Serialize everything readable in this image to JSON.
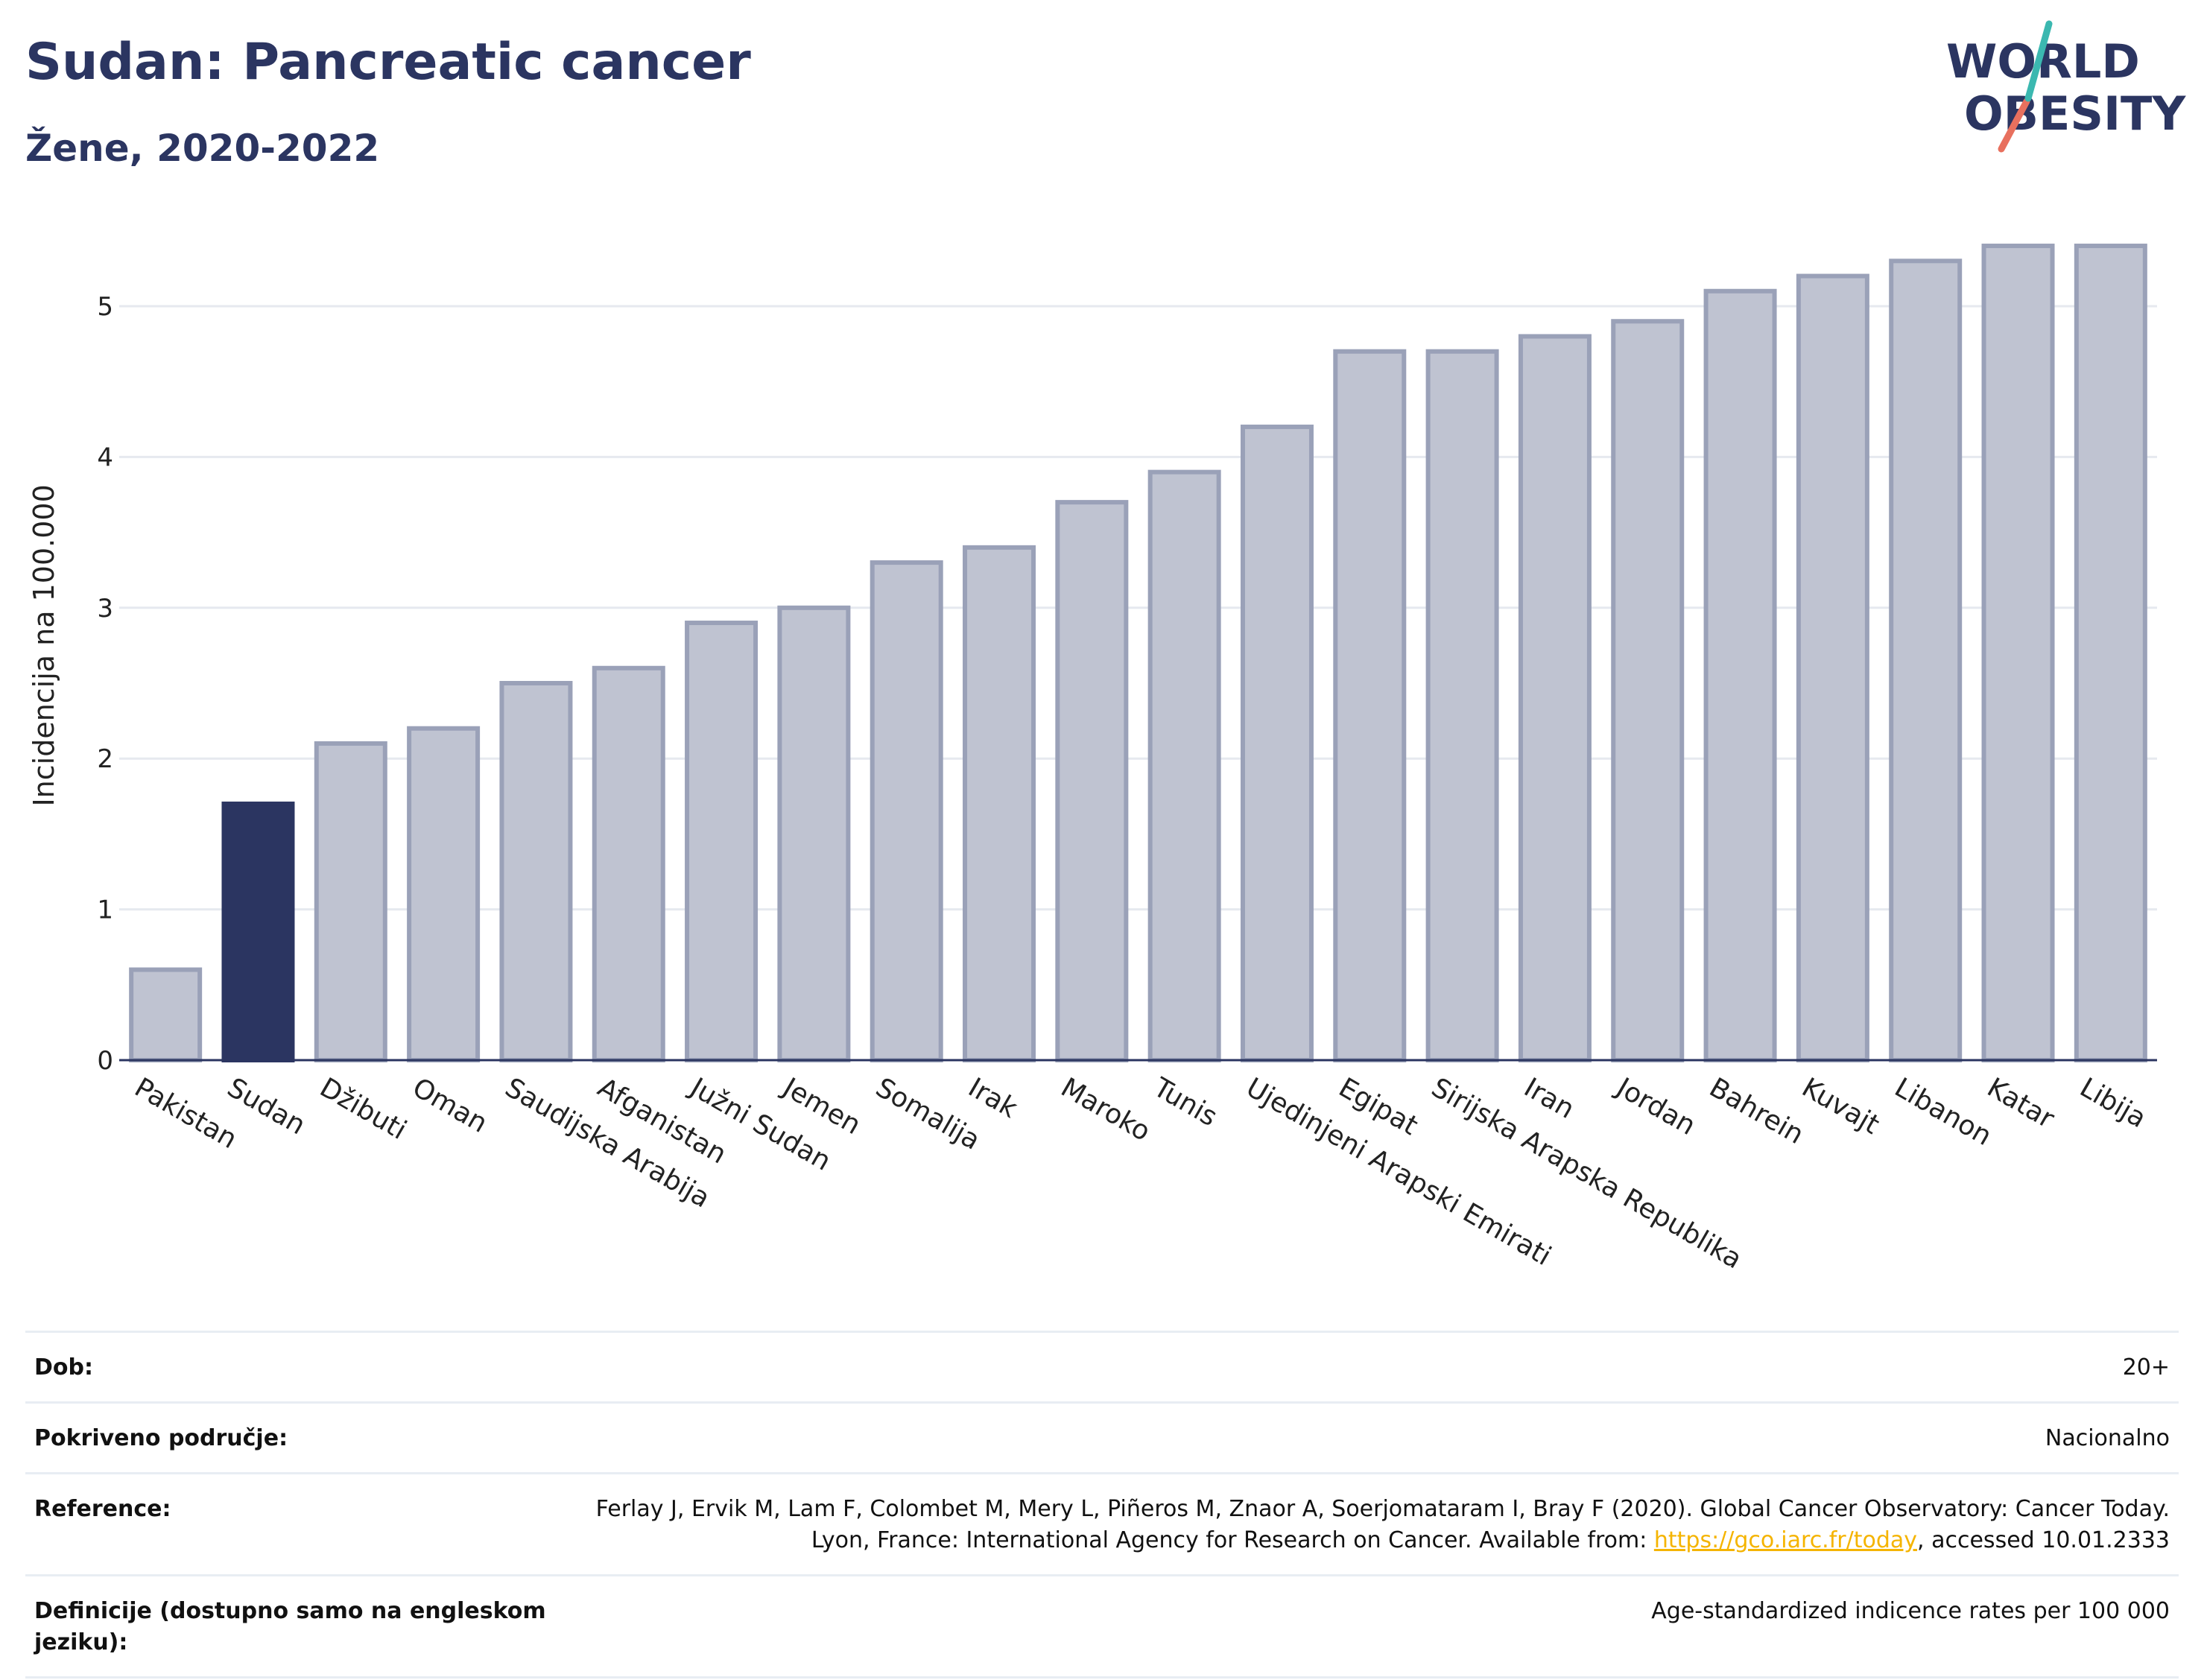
{
  "header": {
    "title": "Sudan: Pancreatic cancer",
    "subtitle": "Žene, 2020-2022",
    "logo_line1": "WORLD",
    "logo_line2": "OBESITY"
  },
  "chart_data": {
    "type": "bar",
    "title": "Sudan: Pancreatic cancer",
    "subtitle": "Žene, 2020-2022",
    "xlabel": "",
    "ylabel": "Incidencija na 100.000",
    "ylim": [
      0,
      5.5
    ],
    "yticks": [
      0,
      1,
      2,
      3,
      4,
      5
    ],
    "grid": true,
    "highlight": "Sudan",
    "categories": [
      "Pakistan",
      "Sudan",
      "Džibuti",
      "Oman",
      "Saudijska Arabija",
      "Afganistan",
      "Južni Sudan",
      "Jemen",
      "Somalija",
      "Irak",
      "Maroko",
      "Tunis",
      "Ujedinjeni Arapski Emirati",
      "Egipat",
      "Sirijska Arapska Republika",
      "Iran",
      "Jordan",
      "Bahrein",
      "Kuvajt",
      "Libanon",
      "Katar",
      "Libija"
    ],
    "values": [
      0.6,
      1.7,
      2.1,
      2.2,
      2.5,
      2.6,
      2.9,
      3.0,
      3.3,
      3.4,
      3.7,
      3.9,
      4.2,
      4.7,
      4.7,
      4.8,
      4.9,
      5.1,
      5.2,
      5.3,
      5.4,
      5.4
    ],
    "colors": {
      "highlight": "#2b3561",
      "bar_fill": "#bfc3d1",
      "bar_stroke": "#9aa1b8",
      "grid": "#e6e9ef",
      "axis": "#2b3561"
    }
  },
  "info": {
    "rows": [
      {
        "key": "Dob:",
        "value": "20+"
      },
      {
        "key": "Pokriveno područje:",
        "value": "Nacionalno"
      },
      {
        "key": "Reference:",
        "value_before": "Ferlay J, Ervik M, Lam F, Colombet M, Mery L, Piñeros M, Znaor A, Soerjomataram I, Bray F (2020). Global Cancer Observatory: Cancer Today. Lyon, France: International Agency for Research on Cancer. Available from: ",
        "link": "https://gco.iarc.fr/today",
        "value_after": ", accessed 10.01.2333"
      },
      {
        "key": "Definicije (dostupno samo na engleskom jeziku):",
        "value": "Age-standardized indicence rates per 100 000"
      }
    ]
  }
}
